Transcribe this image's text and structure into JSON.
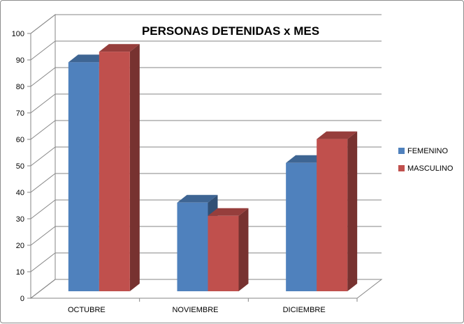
{
  "chart_data": {
    "type": "bar",
    "title": "PERSONAS DETENIDAS x MES",
    "xlabel": "",
    "ylabel": "",
    "categories": [
      "OCTUBRE",
      "NOVIEMBRE",
      "DICIEMBRE"
    ],
    "series": [
      {
        "name": "FEMENINO",
        "values": [
          87,
          34,
          49
        ],
        "color": "#4F81BD"
      },
      {
        "name": "MASCULINO",
        "values": [
          91,
          29,
          58
        ],
        "color": "#C0504D"
      }
    ],
    "ylim": [
      0,
      100
    ],
    "yticks": [
      "0",
      "10",
      "20",
      "30",
      "40",
      "50",
      "60",
      "70",
      "80",
      "90",
      "100"
    ],
    "grid": true,
    "three_d": true,
    "legend_position": "right"
  }
}
